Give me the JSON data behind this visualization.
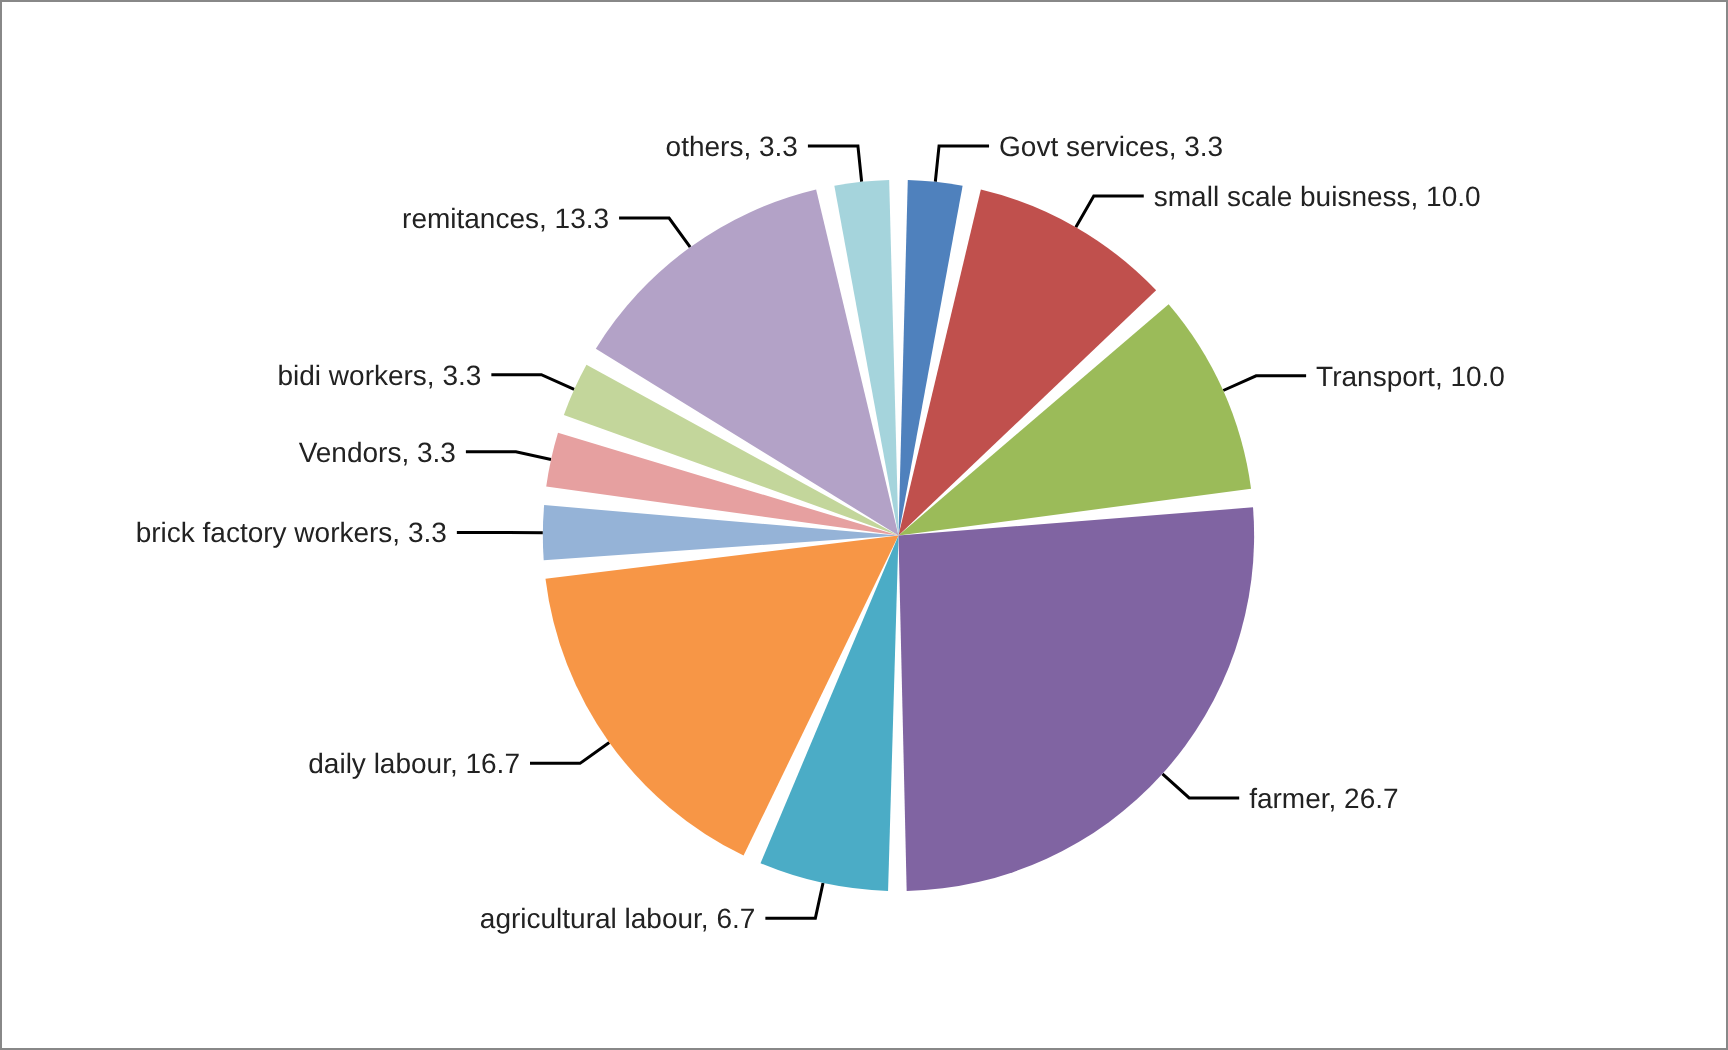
{
  "chart_data": {
    "type": "pie",
    "categories": [
      "Govt services",
      "small scale buisness",
      "Transport",
      "farmer",
      "agricultural labour",
      "daily labour",
      "brick factory workers",
      "Vendors",
      "bidi workers",
      "remitances",
      "others"
    ],
    "values": [
      3.3,
      10.0,
      10.0,
      26.7,
      6.7,
      16.7,
      3.3,
      3.3,
      3.3,
      13.3,
      3.3
    ],
    "value_labels": [
      "3.3",
      "10.0",
      "10.0",
      "26.7",
      "6.7",
      "16.7",
      "3.3",
      "3.3",
      "3.3",
      "13.3",
      "3.3"
    ],
    "colors": [
      "#4f81bd",
      "#c0504d",
      "#9bbb59",
      "#8064a2",
      "#4bacc6",
      "#f79646",
      "#95b3d7",
      "#e6a0a0",
      "#c3d69b",
      "#b3a2c7",
      "#a5d4dc"
    ],
    "legend": false
  }
}
